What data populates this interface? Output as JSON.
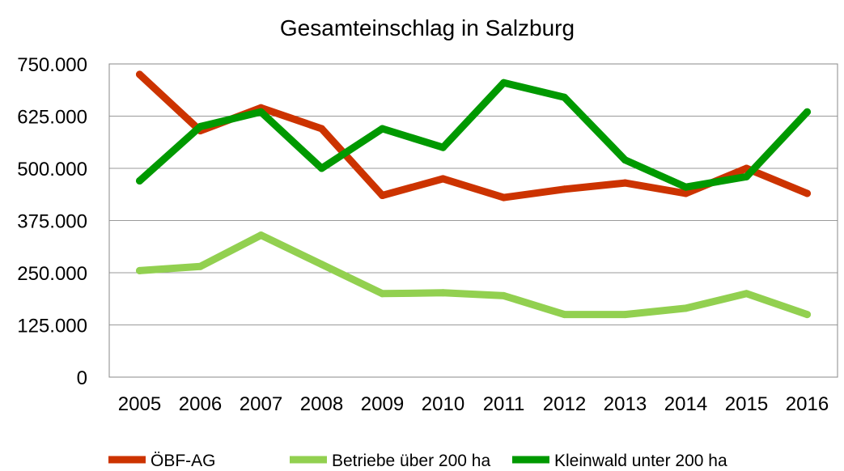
{
  "chart_data": {
    "type": "line",
    "title": "Gesamteinschlag in Salzburg",
    "xlabel": "",
    "ylabel": "",
    "x": [
      "2005",
      "2006",
      "2007",
      "2008",
      "2009",
      "2010",
      "2011",
      "2012",
      "2013",
      "2014",
      "2015",
      "2016"
    ],
    "ylim": [
      0,
      750000
    ],
    "y_ticks": [
      0,
      125000,
      250000,
      375000,
      500000,
      625000,
      750000
    ],
    "y_tick_labels": [
      "0",
      "125.000",
      "250.000",
      "375.000",
      "500.000",
      "625.000",
      "750.000"
    ],
    "grid": true,
    "legend_position": "bottom",
    "series": [
      {
        "name": "ÖBF-AG",
        "color": "#cc3300",
        "values": [
          725000,
          590000,
          645000,
          595000,
          435000,
          475000,
          430000,
          450000,
          465000,
          440000,
          500000,
          440000
        ]
      },
      {
        "name": "Betriebe über 200 ha",
        "color": "#92d050",
        "values": [
          255000,
          265000,
          340000,
          270000,
          200000,
          202000,
          195000,
          150000,
          150000,
          165000,
          200000,
          150000
        ]
      },
      {
        "name": "Kleinwald unter 200 ha",
        "color": "#009900",
        "values": [
          470000,
          600000,
          635000,
          500000,
          595000,
          550000,
          705000,
          670000,
          520000,
          455000,
          480000,
          635000
        ]
      }
    ]
  }
}
